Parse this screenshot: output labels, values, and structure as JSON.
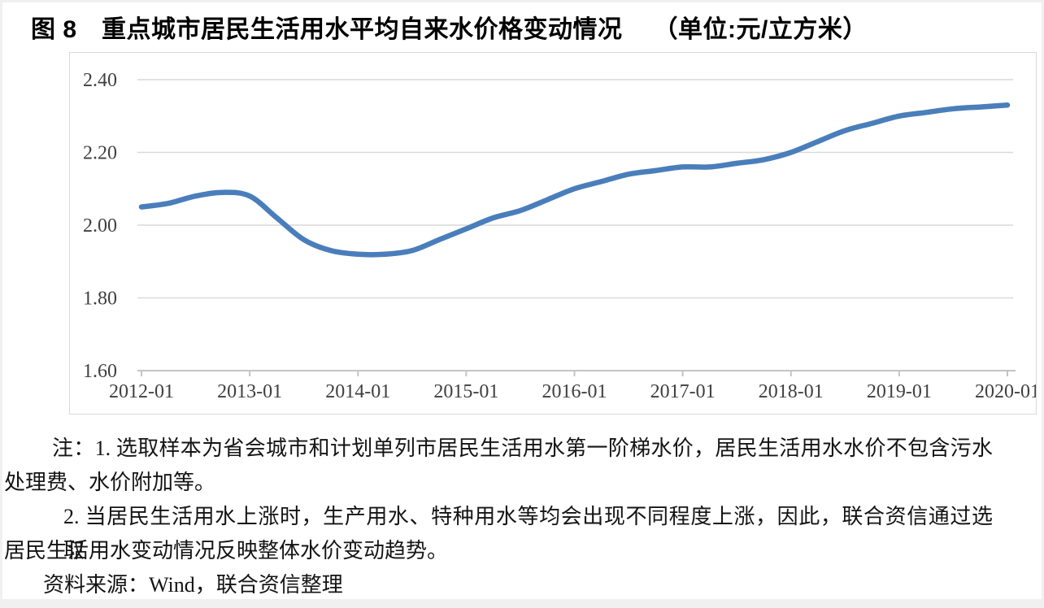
{
  "title": {
    "main": "图 8　重点城市居民生活用水平均自来水价格变动情况",
    "unit": "（单位:元/立方米）"
  },
  "notes": {
    "lines": [
      "注：1. 选取样本为省会城市和计划单列市居民生活用水第一阶梯水价，居民生活用水水价不包含污水",
      "处理费、水价附加等。",
      "2. 当居民生活用水上涨时，生产用水、特种用水等均会出现不同程度上涨，因此，联合资信通过选取",
      "居民生活用水变动情况反映整体水价变动趋势。"
    ],
    "source": "资料来源：Wind，联合资信整理"
  },
  "chart_data": {
    "type": "line",
    "title": "重点城市居民生活用水平均自来水价格变动情况",
    "unit": "元/立方米",
    "xlabel": "",
    "ylabel": "",
    "ylim": [
      1.6,
      2.4
    ],
    "grid": true,
    "legend": false,
    "line_color": "#4a7ebb",
    "gridline_color": "#d9d9d9",
    "axis_color": "#c4c4c4",
    "tick_text_color": "#3f3f3f",
    "y_ticks": [
      2.4,
      2.2,
      2.0,
      1.8,
      1.6
    ],
    "y_tick_labels": [
      "2.40",
      "2.20",
      "2.00",
      "1.80",
      "1.60"
    ],
    "x_tick_labels": [
      "2012-01",
      "2013-01",
      "2014-01",
      "2015-01",
      "2016-01",
      "2017-01",
      "2018-01",
      "2019-01",
      "2020-01"
    ],
    "series": [
      {
        "name": "重点城市居民生活用水平均自来水价格",
        "x": [
          "2012-01",
          "2012-04",
          "2012-07",
          "2012-10",
          "2013-01",
          "2013-04",
          "2013-07",
          "2013-10",
          "2014-01",
          "2014-04",
          "2014-07",
          "2014-10",
          "2015-01",
          "2015-04",
          "2015-07",
          "2015-10",
          "2016-01",
          "2016-04",
          "2016-07",
          "2016-10",
          "2017-01",
          "2017-04",
          "2017-07",
          "2017-10",
          "2018-01",
          "2018-04",
          "2018-07",
          "2018-10",
          "2019-01",
          "2019-04",
          "2019-07",
          "2019-10",
          "2020-01"
        ],
        "values": [
          2.05,
          2.06,
          2.08,
          2.09,
          2.08,
          2.02,
          1.96,
          1.93,
          1.92,
          1.92,
          1.93,
          1.96,
          1.99,
          2.02,
          2.04,
          2.07,
          2.1,
          2.12,
          2.14,
          2.15,
          2.16,
          2.16,
          2.17,
          2.18,
          2.2,
          2.23,
          2.26,
          2.28,
          2.3,
          2.31,
          2.32,
          2.325,
          2.33
        ]
      }
    ]
  }
}
